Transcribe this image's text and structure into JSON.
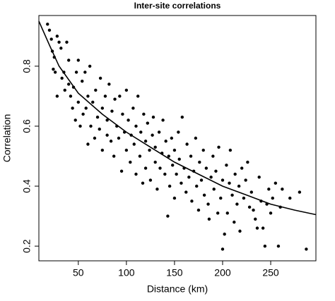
{
  "chart_data": {
    "type": "scatter",
    "title": "Inter-site correlations",
    "xlabel": "Distance (km)",
    "ylabel": "Correlation",
    "xlim": [
      9,
      297
    ],
    "ylim": [
      0.151,
      0.969
    ],
    "xticks": [
      50,
      100,
      150,
      200,
      250
    ],
    "yticks": [
      0.2,
      0.4,
      0.6,
      0.8
    ],
    "color": "#000000",
    "points": {
      "x": [
        18,
        20,
        22,
        23,
        25,
        24,
        26,
        28,
        30,
        32,
        28,
        33,
        35,
        36,
        38,
        40,
        40,
        42,
        44,
        45,
        47,
        48,
        50,
        50,
        52,
        54,
        55,
        57,
        58,
        60,
        60,
        62,
        63,
        65,
        67,
        68,
        70,
        72,
        73,
        75,
        75,
        78,
        80,
        80,
        82,
        84,
        85,
        87,
        88,
        90,
        92,
        93,
        95,
        96,
        98,
        100,
        100,
        102,
        104,
        105,
        107,
        108,
        110,
        110,
        112,
        114,
        115,
        117,
        118,
        120,
        120,
        122,
        124,
        125,
        127,
        128,
        130,
        130,
        132,
        134,
        135,
        137,
        138,
        140,
        141,
        143,
        144,
        145,
        147,
        148,
        150,
        150,
        152,
        154,
        155,
        157,
        158,
        160,
        162,
        163,
        165,
        167,
        168,
        170,
        172,
        173,
        175,
        176,
        178,
        180,
        181,
        183,
        185,
        186,
        188,
        190,
        191,
        193,
        195,
        196,
        198,
        200,
        200,
        202,
        204,
        205,
        207,
        208,
        210,
        212,
        213,
        215,
        217,
        218,
        220,
        222,
        224,
        226,
        228,
        230,
        232,
        234,
        236,
        238,
        240,
        242,
        244,
        246,
        248,
        250,
        252,
        255,
        258,
        260,
        262,
        270,
        280,
        287
      ],
      "y": [
        0.94,
        0.92,
        0.89,
        0.85,
        0.83,
        0.79,
        0.78,
        0.9,
        0.88,
        0.86,
        0.7,
        0.76,
        0.78,
        0.72,
        0.88,
        0.74,
        0.82,
        0.7,
        0.66,
        0.73,
        0.62,
        0.78,
        0.82,
        0.68,
        0.6,
        0.75,
        0.64,
        0.78,
        0.66,
        0.54,
        0.7,
        0.8,
        0.6,
        0.68,
        0.56,
        0.72,
        0.63,
        0.59,
        0.76,
        0.52,
        0.66,
        0.7,
        0.57,
        0.62,
        0.74,
        0.55,
        0.65,
        0.5,
        0.69,
        0.6,
        0.56,
        0.7,
        0.45,
        0.64,
        0.58,
        0.52,
        0.72,
        0.62,
        0.48,
        0.57,
        0.66,
        0.54,
        0.44,
        0.6,
        0.7,
        0.5,
        0.58,
        0.41,
        0.64,
        0.55,
        0.46,
        0.61,
        0.52,
        0.42,
        0.57,
        0.63,
        0.48,
        0.53,
        0.39,
        0.58,
        0.46,
        0.51,
        0.62,
        0.44,
        0.55,
        0.3,
        0.5,
        0.4,
        0.56,
        0.47,
        0.52,
        0.36,
        0.44,
        0.58,
        0.49,
        0.41,
        0.63,
        0.46,
        0.38,
        0.54,
        0.43,
        0.5,
        0.35,
        0.45,
        0.56,
        0.4,
        0.32,
        0.48,
        0.42,
        0.52,
        0.37,
        0.46,
        0.34,
        0.29,
        0.43,
        0.5,
        0.39,
        0.45,
        0.31,
        0.53,
        0.36,
        0.42,
        0.19,
        0.24,
        0.47,
        0.31,
        0.41,
        0.52,
        0.37,
        0.28,
        0.44,
        0.34,
        0.4,
        0.25,
        0.46,
        0.36,
        0.42,
        0.48,
        0.33,
        0.38,
        0.32,
        0.29,
        0.26,
        0.43,
        0.35,
        0.26,
        0.2,
        0.34,
        0.39,
        0.31,
        0.36,
        0.41,
        0.2,
        0.33,
        0.39,
        0.36,
        0.38,
        0.19
      ]
    },
    "curve": {
      "x": [
        9,
        20,
        30,
        50,
        75,
        100,
        125,
        150,
        175,
        200,
        225,
        250,
        275,
        297
      ],
      "y": [
        0.95,
        0.87,
        0.8,
        0.71,
        0.64,
        0.58,
        0.53,
        0.48,
        0.44,
        0.4,
        0.37,
        0.34,
        0.32,
        0.305
      ]
    }
  }
}
